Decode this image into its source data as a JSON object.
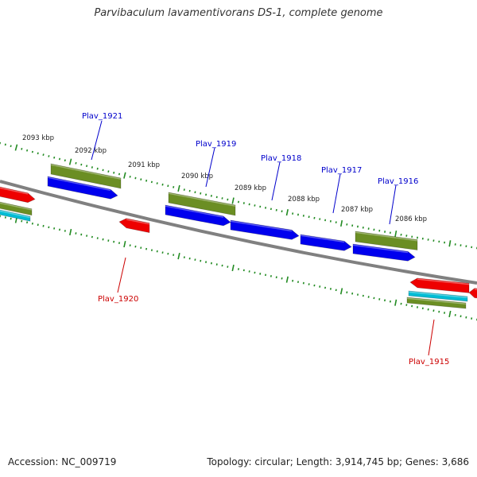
{
  "title": "Parvibaculum lavamentivorans DS-1, complete genome",
  "footer": {
    "accession": "Accession: NC_009719",
    "topology": "Topology: circular; Length: 3,914,745 bp; Genes: 3,686"
  },
  "colors": {
    "forward_label": "#0000cc",
    "reverse_label": "#cc0000",
    "cds_blue": "#0000ee",
    "cds_red": "#ee0000",
    "gene_green": "#6b8e23",
    "rna_cyan": "#00bcd4",
    "backbone": "#808080",
    "tick": "#228b22"
  },
  "ticks": [
    {
      "label": "2093 kbp"
    },
    {
      "label": "2092 kbp"
    },
    {
      "label": "2091 kbp"
    },
    {
      "label": "2090 kbp"
    },
    {
      "label": "2089 kbp"
    },
    {
      "label": "2088 kbp"
    },
    {
      "label": "2087 kbp"
    },
    {
      "label": "2086 kbp"
    }
  ],
  "gene_labels": [
    {
      "name": "Plav_1921",
      "strand": "forward"
    },
    {
      "name": "Plav_1919",
      "strand": "forward"
    },
    {
      "name": "Plav_1918",
      "strand": "forward"
    },
    {
      "name": "Plav_1917",
      "strand": "forward"
    },
    {
      "name": "Plav_1916",
      "strand": "forward"
    },
    {
      "name": "Plav_1920",
      "strand": "reverse"
    },
    {
      "name": "Plav_1915",
      "strand": "reverse"
    }
  ]
}
